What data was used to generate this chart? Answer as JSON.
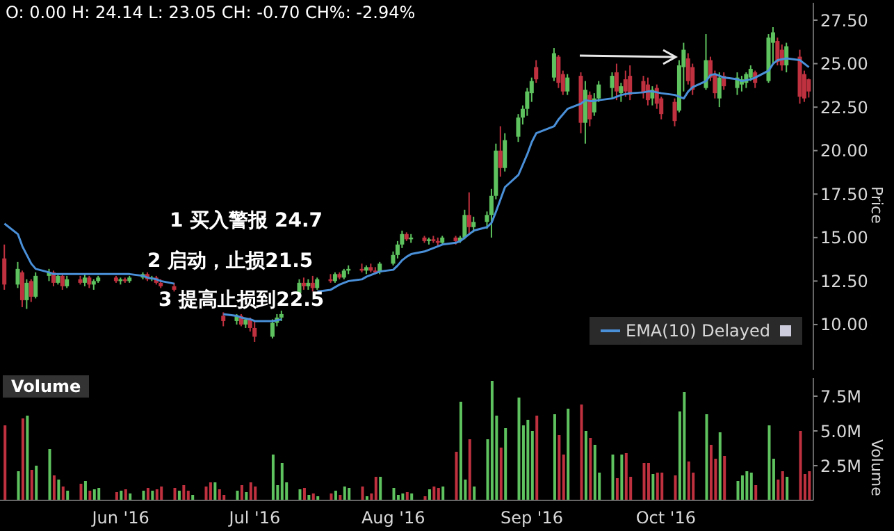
{
  "chart_data": [
    {
      "type": "candlestick",
      "title": "O: 0.00 H: 24.14 L: 23.05 CH: -0.70 CH%: -2.94%",
      "ylabel": "Price",
      "legend": "bottom right",
      "tick_labels": "y",
      "colors": [
        "#c0313f",
        "#5ec35e",
        "#c0313f",
        "#5ec35e",
        "#c0313f",
        "#5ec35e",
        "#5ec35e",
        "#c0313f",
        "#5ec35e",
        "#c0313f",
        "#5ec35e",
        "#c0313f",
        "#5ec35e",
        "#c0313f",
        "#5ec35e",
        "#5ec35e",
        "#c0313f",
        "#5ec35e",
        "#c0313f",
        "#5ec35e",
        "#5ec35e",
        "#c0313f",
        "#5ec35e",
        "#c0313f",
        "#c0313f",
        "#c0313f",
        null,
        null,
        null,
        null,
        null,
        null,
        null,
        null,
        "#c0313f",
        "#5ec35e",
        "#c0313f",
        "#5ec35e",
        "#c0313f",
        "#c0313f",
        "#5ec35e",
        "#5ec35e",
        "#5ec35e",
        null,
        "#5ec35e",
        "#c0313f",
        "#5ec35e",
        "#c0313f",
        "#5ec35e",
        "#c0313f",
        "#5ec35e",
        "#c0313f",
        "#5ec35e",
        "#5ec35e",
        "#c0313f",
        "#5ec35e",
        "#c0313f",
        "#c0313f",
        "#5ec35e",
        "#5ec35e",
        "#5ec35e",
        "#5ec35e",
        "#c0313f",
        "#5ec35e",
        "#c0313f",
        "#5ec35e",
        "#c0313f",
        "#c0313f",
        "#5ec35e",
        "#c0313f",
        "#5ec35e",
        "#5ec35e",
        "#c0313f",
        "#5ec35e",
        "#5ec35e",
        "#5ec35e",
        "#5ec35e",
        "#c0313f",
        "#5ec35e",
        "#5ec35e",
        "#5ec35e",
        "#5ec35e",
        "#5ec35e",
        "#c0313f",
        "#5ec35e",
        "#c0313f",
        "#c0313f",
        "#5ec35e",
        "#c0313f",
        "#5ec35e",
        "#c0313f",
        "#5ec35e",
        "#5ec35e",
        "#5ec35e",
        "#c0313f",
        "#5ec35e",
        "#c0313f",
        "#c0313f",
        "#c0313f",
        "#c0313f",
        "#5ec35e",
        "#c0313f",
        "#c0313f",
        "#c0313f",
        "#5ec35e",
        "#5ec35e",
        "#c0313f",
        "#c0313f",
        "#5ec35e",
        "#c0313f",
        "#c0313f",
        "#5ec35e",
        "#c0313f",
        "#5ec35e",
        "#5ec35e",
        "#5ec35e",
        "#5ec35e",
        "#c0313f",
        "#5ec35e",
        "#5ec35e",
        "#c0313f",
        "#c0313f",
        "#5ec35e",
        "#c0313f",
        "#c0313f",
        "#c0313f"
      ],
      "annotations": [
        "1 买入警报 24.7",
        "2 启动，止损21.5",
        "3 提高止损到22.5"
      ],
      "xlim": [
        "2016-05-05",
        "2016-11-03"
      ],
      "ylim": [
        7.4,
        28.5
      ],
      "yticks": [
        {
          "value": 10,
          "label": "10.00"
        },
        {
          "value": 12.5,
          "label": "12.50"
        },
        {
          "value": 15,
          "label": "15.00"
        },
        {
          "value": 17.5,
          "label": "17.50"
        },
        {
          "value": 20,
          "label": "20.00"
        },
        {
          "value": 22.5,
          "label": "22.50"
        },
        {
          "value": 25,
          "label": "25.00"
        },
        {
          "value": 27.5,
          "label": "27.50"
        }
      ],
      "x": [
        "2016-05-06",
        "2016-05-09",
        "2016-05-10",
        "2016-05-11",
        "2016-05-12",
        "2016-05-13",
        "2016-05-16",
        "2016-05-17",
        "2016-05-18",
        "2016-05-19",
        "2016-05-20",
        "2016-05-23",
        "2016-05-24",
        "2016-05-25",
        "2016-05-26",
        "2016-05-27",
        "2016-05-31",
        "2016-06-01",
        "2016-06-02",
        "2016-06-03",
        "2016-06-06",
        "2016-06-07",
        "2016-06-08",
        "2016-06-09",
        "2016-06-10",
        "2016-06-13",
        "2016-06-14",
        "2016-06-15",
        "2016-06-16",
        "2016-06-17",
        "2016-06-20",
        "2016-06-21",
        "2016-06-22",
        "2016-06-23",
        "2016-06-24",
        "2016-06-27",
        "2016-06-28",
        "2016-06-29",
        "2016-06-30",
        "2016-07-01",
        "2016-07-05",
        "2016-07-06",
        "2016-07-07",
        "2016-07-08",
        "2016-07-11",
        "2016-07-12",
        "2016-07-13",
        "2016-07-14",
        "2016-07-15",
        "2016-07-18",
        "2016-07-19",
        "2016-07-20",
        "2016-07-21",
        "2016-07-22",
        "2016-07-25",
        "2016-07-26",
        "2016-07-27",
        "2016-07-28",
        "2016-07-29",
        "2016-08-01",
        "2016-08-02",
        "2016-08-03",
        "2016-08-04",
        "2016-08-05",
        "2016-08-08",
        "2016-08-09",
        "2016-08-10",
        "2016-08-11",
        "2016-08-12",
        "2016-08-15",
        "2016-08-16",
        "2016-08-17",
        "2016-08-18",
        "2016-08-19",
        "2016-08-22",
        "2016-08-23",
        "2016-08-24",
        "2016-08-25",
        "2016-08-26",
        "2016-08-29",
        "2016-08-30",
        "2016-08-31",
        "2016-09-01",
        "2016-09-02",
        "2016-09-06",
        "2016-09-07",
        "2016-09-08",
        "2016-09-09",
        "2016-09-12",
        "2016-09-13",
        "2016-09-14",
        "2016-09-15",
        "2016-09-16",
        "2016-09-19",
        "2016-09-20",
        "2016-09-21",
        "2016-09-22",
        "2016-09-23",
        "2016-09-26",
        "2016-09-27",
        "2016-09-28",
        "2016-09-29",
        "2016-09-30",
        "2016-10-03",
        "2016-10-04",
        "2016-10-05",
        "2016-10-06",
        "2016-10-07",
        "2016-10-10",
        "2016-10-11",
        "2016-10-12",
        "2016-10-13",
        "2016-10-14",
        "2016-10-17",
        "2016-10-18",
        "2016-10-19",
        "2016-10-20",
        "2016-10-21",
        "2016-10-24",
        "2016-10-25",
        "2016-10-26",
        "2016-10-27",
        "2016-10-28",
        "2016-10-31",
        "2016-11-01",
        "2016-11-02"
      ],
      "ohlc": [
        [
          13.8,
          14.6,
          12.0,
          12.3
        ],
        [
          12.3,
          13.6,
          12.1,
          13.2
        ],
        [
          13.0,
          13.1,
          11.0,
          11.4
        ],
        [
          11.4,
          12.6,
          10.9,
          12.4
        ],
        [
          12.5,
          12.6,
          11.3,
          11.6
        ],
        [
          11.6,
          13.0,
          11.5,
          12.8
        ],
        [
          12.8,
          13.2,
          12.5,
          13.0
        ],
        [
          13.0,
          13.1,
          12.2,
          12.4
        ],
        [
          12.4,
          12.9,
          12.3,
          12.8
        ],
        [
          12.8,
          12.9,
          12.0,
          12.2
        ],
        [
          12.2,
          12.8,
          12.1,
          12.6
        ],
        [
          12.6,
          12.8,
          12.3,
          12.4
        ],
        [
          12.4,
          12.9,
          12.2,
          12.7
        ],
        [
          12.7,
          12.8,
          12.1,
          12.3
        ],
        [
          12.3,
          12.6,
          12.0,
          12.5
        ],
        [
          12.5,
          12.8,
          12.4,
          12.7
        ],
        [
          12.7,
          12.8,
          12.4,
          12.5
        ],
        [
          12.5,
          12.7,
          12.3,
          12.6
        ],
        [
          12.6,
          12.7,
          12.4,
          12.5
        ],
        [
          12.5,
          12.8,
          12.4,
          12.7
        ],
        [
          12.7,
          13.0,
          12.6,
          12.9
        ],
        [
          12.9,
          13.0,
          12.5,
          12.6
        ],
        [
          12.6,
          12.8,
          12.5,
          12.7
        ],
        [
          12.7,
          12.8,
          12.3,
          12.4
        ],
        [
          12.4,
          12.6,
          12.1,
          12.2
        ],
        [
          12.2,
          12.4,
          11.9,
          12.0
        ],
        null,
        null,
        null,
        null,
        null,
        null,
        null,
        null,
        [
          10.5,
          10.7,
          9.9,
          10.2
        ],
        [
          10.2,
          10.6,
          10.0,
          10.5
        ],
        [
          10.5,
          10.6,
          9.9,
          10.0
        ],
        [
          10.0,
          10.4,
          9.8,
          10.3
        ],
        [
          10.3,
          10.4,
          9.6,
          9.8
        ],
        [
          9.8,
          10.2,
          9.0,
          9.3
        ],
        [
          9.3,
          10.3,
          9.2,
          10.1
        ],
        [
          10.1,
          10.6,
          9.9,
          10.4
        ],
        [
          10.4,
          10.8,
          10.2,
          10.6
        ],
        null,
        [
          11.8,
          12.6,
          11.6,
          12.4
        ],
        [
          12.4,
          12.7,
          12.0,
          12.2
        ],
        [
          12.2,
          12.6,
          12.0,
          12.4
        ],
        [
          12.4,
          12.8,
          11.9,
          12.1
        ],
        [
          12.1,
          12.7,
          12.0,
          12.6
        ],
        [
          12.6,
          12.9,
          12.4,
          12.5
        ],
        [
          12.5,
          13.0,
          12.4,
          12.9
        ],
        [
          12.9,
          13.0,
          12.6,
          12.7
        ],
        [
          12.7,
          13.2,
          12.6,
          13.1
        ],
        [
          13.1,
          13.4,
          12.9,
          13.2
        ],
        [
          13.2,
          13.5,
          13.0,
          13.1
        ],
        [
          13.1,
          13.4,
          12.9,
          13.3
        ],
        [
          13.3,
          13.5,
          13.0,
          13.1
        ],
        [
          13.1,
          13.3,
          12.9,
          13.0
        ],
        [
          13.0,
          13.6,
          12.9,
          13.5
        ],
        [
          13.5,
          14.2,
          13.4,
          14.0
        ],
        [
          14.0,
          14.8,
          13.8,
          14.6
        ],
        [
          14.6,
          15.4,
          14.4,
          15.2
        ],
        [
          15.2,
          15.3,
          14.8,
          14.9
        ],
        [
          14.9,
          15.2,
          14.7,
          15.0
        ],
        [
          15.0,
          15.1,
          14.7,
          14.8
        ],
        [
          14.8,
          15.0,
          14.6,
          14.9
        ],
        [
          14.9,
          15.1,
          14.7,
          14.8
        ],
        [
          14.8,
          15.0,
          14.5,
          14.7
        ],
        [
          14.7,
          15.1,
          14.6,
          15.0
        ],
        [
          15.0,
          15.1,
          14.6,
          14.8
        ],
        [
          14.8,
          15.1,
          14.7,
          15.0
        ],
        [
          15.0,
          16.6,
          14.9,
          16.3
        ],
        [
          16.3,
          17.6,
          15.2,
          15.6
        ],
        [
          15.6,
          16.2,
          15.3,
          15.9
        ],
        [
          15.9,
          16.5,
          15.5,
          16.3
        ],
        [
          16.3,
          17.8,
          15.0,
          17.4
        ],
        [
          17.4,
          20.4,
          17.2,
          20.0
        ],
        [
          20.0,
          21.4,
          18.5,
          19.0
        ],
        [
          19.0,
          21.0,
          18.8,
          20.6
        ],
        [
          20.8,
          22.1,
          20.5,
          21.9
        ],
        [
          21.9,
          22.6,
          21.5,
          22.4
        ],
        [
          22.4,
          23.6,
          22.0,
          23.4
        ],
        [
          23.3,
          24.2,
          22.8,
          24.0
        ],
        [
          24.8,
          25.2,
          23.9,
          24.1
        ],
        [
          24.2,
          25.9,
          24.0,
          25.6
        ],
        [
          25.4,
          25.5,
          23.6,
          23.9
        ],
        [
          24.4,
          24.6,
          23.2,
          23.4
        ],
        [
          23.4,
          24.4,
          23.2,
          24.2
        ],
        [
          24.3,
          24.5,
          21.0,
          21.6
        ],
        [
          21.6,
          24.0,
          20.4,
          23.5
        ],
        [
          23.2,
          23.4,
          21.4,
          21.8
        ],
        [
          22.2,
          23.3,
          22.0,
          23.0
        ],
        [
          23.0,
          24.0,
          22.8,
          23.8
        ],
        [
          23.6,
          24.5,
          23.0,
          24.3
        ],
        [
          24.5,
          25.0,
          22.9,
          23.4
        ],
        [
          23.3,
          23.9,
          22.8,
          23.7
        ],
        [
          24.1,
          24.6,
          23.1,
          23.4
        ],
        [
          24.3,
          24.9,
          22.9,
          23.2
        ],
        [
          24.0,
          24.3,
          23.0,
          23.3
        ],
        [
          23.8,
          24.2,
          22.6,
          22.9
        ],
        [
          23.0,
          23.7,
          22.6,
          23.5
        ],
        [
          23.6,
          23.8,
          22.4,
          22.7
        ],
        [
          23.0,
          23.1,
          21.8,
          22.1
        ],
        [
          22.8,
          23.0,
          21.4,
          21.7
        ],
        [
          22.3,
          25.2,
          22.2,
          24.9
        ],
        [
          24.8,
          26.2,
          23.4,
          25.8
        ],
        [
          25.3,
          25.6,
          23.8,
          24.0
        ],
        [
          24.8,
          25.0,
          23.2,
          23.5
        ],
        [
          23.6,
          26.7,
          23.5,
          25.2
        ],
        [
          25.2,
          25.4,
          24.0,
          24.2
        ],
        [
          24.4,
          24.6,
          23.0,
          23.3
        ],
        [
          23.0,
          24.5,
          22.5,
          24.2
        ],
        [
          24.3,
          24.5,
          23.5,
          23.7
        ],
        [
          23.6,
          24.5,
          23.2,
          24.2
        ],
        [
          23.8,
          24.3,
          23.4,
          24.1
        ],
        [
          23.9,
          24.5,
          23.6,
          24.4
        ],
        [
          24.2,
          24.9,
          24.0,
          24.7
        ],
        [
          24.5,
          24.6,
          23.6,
          23.9
        ],
        [
          24.0,
          26.7,
          23.9,
          26.5
        ],
        [
          26.2,
          27.1,
          25.0,
          26.8
        ],
        [
          26.3,
          26.5,
          24.9,
          25.1
        ],
        [
          25.8,
          26.1,
          24.6,
          24.9
        ],
        [
          24.9,
          26.2,
          24.5,
          26.0
        ],
        [
          25.4,
          25.8,
          22.7,
          23.1
        ],
        [
          24.4,
          24.6,
          22.8,
          23.0
        ],
        [
          24.1,
          24.14,
          23.05,
          23.4
        ]
      ],
      "series": [
        {
          "name": "EMA(10) Delayed",
          "type": "line",
          "color": "#4a90d9",
          "values": [
            15.8,
            15.2,
            14.5,
            14.0,
            13.5,
            13.2,
            13.0,
            12.9,
            12.9,
            12.9,
            12.9,
            12.9,
            12.9,
            12.9,
            12.9,
            12.9,
            12.9,
            12.9,
            12.9,
            12.9,
            12.8,
            12.7,
            12.65,
            12.6,
            12.5,
            12.35,
            null,
            null,
            null,
            null,
            null,
            null,
            null,
            null,
            10.6,
            10.5,
            10.4,
            10.35,
            10.3,
            10.2,
            10.2,
            10.25,
            10.3,
            null,
            null,
            null,
            null,
            null,
            11.9,
            12.0,
            12.15,
            12.3,
            12.4,
            12.5,
            12.6,
            12.75,
            12.85,
            12.95,
            13.05,
            13.15,
            13.4,
            13.7,
            13.9,
            14.05,
            14.2,
            14.3,
            14.4,
            14.5,
            14.6,
            14.7,
            14.8,
            15.0,
            15.2,
            15.4,
            15.6,
            15.85,
            16.5,
            17.2,
            17.9,
            18.6,
            19.2,
            19.8,
            20.5,
            21.0,
            21.4,
            21.8,
            22.1,
            22.4,
            22.7,
            22.9,
            22.85,
            22.85,
            22.9,
            23.0,
            23.1,
            23.2,
            23.25,
            23.3,
            23.35,
            23.4,
            23.4,
            23.35,
            23.3,
            23.2,
            23.1,
            23.0,
            23.4,
            23.65,
            24.0,
            24.35,
            24.4,
            24.3,
            24.2,
            24.1,
            24.0,
            24.05,
            24.1,
            24.2,
            24.6,
            25.0,
            25.2,
            25.25,
            25.3,
            25.2,
            25.0,
            24.8
          ]
        }
      ]
    },
    {
      "type": "bar",
      "title": "Volume",
      "ylabel": "Volume",
      "xlim": [
        "2016-05-05",
        "2016-11-03"
      ],
      "ylim": [
        0,
        8.8
      ],
      "xticks": [
        {
          "value": "2016-06-01",
          "label": "Jun '16"
        },
        {
          "value": "2016-07-01",
          "label": "Jul '16"
        },
        {
          "value": "2016-08-01",
          "label": "Aug '16"
        },
        {
          "value": "2016-09-01",
          "label": "Sep '16"
        },
        {
          "value": "2016-10-01",
          "label": "Oct '16"
        }
      ],
      "yticks": [
        {
          "value": 2.5,
          "label": "2.5M"
        },
        {
          "value": 5,
          "label": "5.0M"
        },
        {
          "value": 7.5,
          "label": "7.5M"
        }
      ],
      "x": [
        "2016-05-06",
        "2016-05-09",
        "2016-05-10",
        "2016-05-11",
        "2016-05-12",
        "2016-05-13",
        "2016-05-16",
        "2016-05-17",
        "2016-05-18",
        "2016-05-19",
        "2016-05-20",
        "2016-05-23",
        "2016-05-24",
        "2016-05-25",
        "2016-05-26",
        "2016-05-27",
        "2016-05-31",
        "2016-06-01",
        "2016-06-02",
        "2016-06-03",
        "2016-06-06",
        "2016-06-07",
        "2016-06-08",
        "2016-06-09",
        "2016-06-10",
        "2016-06-13",
        "2016-06-14",
        "2016-06-15",
        "2016-06-16",
        "2016-06-17",
        "2016-06-20",
        "2016-06-21",
        "2016-06-22",
        "2016-06-23",
        "2016-06-24",
        "2016-06-27",
        "2016-06-28",
        "2016-06-29",
        "2016-06-30",
        "2016-07-01",
        "2016-07-05",
        "2016-07-06",
        "2016-07-07",
        "2016-07-08",
        "2016-07-11",
        "2016-07-12",
        "2016-07-13",
        "2016-07-14",
        "2016-07-15",
        "2016-07-18",
        "2016-07-19",
        "2016-07-20",
        "2016-07-21",
        "2016-07-22",
        "2016-07-25",
        "2016-07-26",
        "2016-07-27",
        "2016-07-28",
        "2016-07-29",
        "2016-08-01",
        "2016-08-02",
        "2016-08-03",
        "2016-08-04",
        "2016-08-05",
        "2016-08-08",
        "2016-08-09",
        "2016-08-10",
        "2016-08-11",
        "2016-08-12",
        "2016-08-15",
        "2016-08-16",
        "2016-08-17",
        "2016-08-18",
        "2016-08-19",
        "2016-08-22",
        "2016-08-23",
        "2016-08-24",
        "2016-08-25",
        "2016-08-26",
        "2016-08-29",
        "2016-08-30",
        "2016-08-31",
        "2016-09-01",
        "2016-09-02",
        "2016-09-06",
        "2016-09-07",
        "2016-09-08",
        "2016-09-09",
        "2016-09-12",
        "2016-09-13",
        "2016-09-14",
        "2016-09-15",
        "2016-09-16",
        "2016-09-19",
        "2016-09-20",
        "2016-09-21",
        "2016-09-22",
        "2016-09-23",
        "2016-09-26",
        "2016-09-27",
        "2016-09-28",
        "2016-09-29",
        "2016-09-30",
        "2016-10-03",
        "2016-10-04",
        "2016-10-05",
        "2016-10-06",
        "2016-10-07",
        "2016-10-10",
        "2016-10-11",
        "2016-10-12",
        "2016-10-13",
        "2016-10-14",
        "2016-10-17",
        "2016-10-18",
        "2016-10-19",
        "2016-10-20",
        "2016-10-21",
        "2016-10-24",
        "2016-10-25",
        "2016-10-26",
        "2016-10-27",
        "2016-10-28",
        "2016-10-31",
        "2016-11-01",
        "2016-11-02"
      ],
      "values": [
        5.4,
        2.1,
        5.9,
        6.1,
        2.2,
        2.5,
        3.7,
        1.8,
        1.5,
        1.0,
        0.7,
        1.2,
        1.4,
        0.7,
        0.8,
        0.9,
        0.6,
        0.7,
        0.8,
        0.5,
        0.7,
        0.9,
        0.7,
        0.8,
        1.0,
        0.9,
        0.7,
        1.1,
        0.7,
        0.4,
        1.0,
        1.3,
        1.3,
        0.8,
        0.4,
        0.7,
        1.1,
        0.6,
        1.3,
        1.0,
        3.3,
        1.1,
        2.7,
        1.3,
        0.8,
        0.9,
        0.4,
        0.5,
        0.3,
        0.5,
        0.7,
        0.4,
        1.0,
        0.9,
        1.0,
        0.3,
        0.5,
        1.7,
        1.7,
        0.9,
        0.4,
        0.5,
        0.6,
        0.5,
        0.3,
        0.8,
        1.0,
        0.9,
        1.0,
        3.5,
        7.1,
        1.5,
        4.4,
        1.0,
        4.4,
        8.6,
        6.1,
        3.8,
        5.2,
        7.4,
        5.4,
        5.8,
        5.0,
        6.1,
        6.2,
        4.7,
        3.3,
        6.6,
        6.9,
        5.0,
        4.5,
        4.0,
        2.0,
        3.3,
        1.6,
        3.3,
        3.4,
        1.7,
        2.7,
        2.7,
        1.9,
        2.0,
        2.0,
        1.8,
        6.4,
        7.8,
        2.8,
        2.0,
        6.2,
        4.0,
        3.0,
        4.9,
        3.2,
        1.4,
        1.8,
        2.1,
        2.0,
        1.1,
        5.4,
        3.0,
        1.5,
        2.1,
        1.7,
        5.0,
        1.9,
        2.1
      ],
      "colors": [
        "#c0313f",
        "#5ec35e",
        "#c0313f",
        "#5ec35e",
        "#c0313f",
        "#5ec35e",
        "#5ec35e",
        "#c0313f",
        "#5ec35e",
        "#c0313f",
        "#5ec35e",
        "#c0313f",
        "#5ec35e",
        "#c0313f",
        "#5ec35e",
        "#5ec35e",
        "#c0313f",
        "#5ec35e",
        "#c0313f",
        "#5ec35e",
        "#5ec35e",
        "#c0313f",
        "#5ec35e",
        "#c0313f",
        "#c0313f",
        "#c0313f",
        "#5ec35e",
        "#c0313f",
        "#c0313f",
        "#5ec35e",
        "#c0313f",
        "#c0313f",
        "#5ec35e",
        "#c0313f",
        "#c0313f",
        "#5ec35e",
        "#c0313f",
        "#5ec35e",
        "#c0313f",
        "#c0313f",
        "#5ec35e",
        "#5ec35e",
        "#5ec35e",
        "#5ec35e",
        "#5ec35e",
        "#c0313f",
        "#5ec35e",
        "#c0313f",
        "#5ec35e",
        "#c0313f",
        "#5ec35e",
        "#c0313f",
        "#5ec35e",
        "#5ec35e",
        "#c0313f",
        "#5ec35e",
        "#c0313f",
        "#c0313f",
        "#5ec35e",
        "#5ec35e",
        "#5ec35e",
        "#5ec35e",
        "#c0313f",
        "#5ec35e",
        "#c0313f",
        "#5ec35e",
        "#c0313f",
        "#c0313f",
        "#5ec35e",
        "#c0313f",
        "#5ec35e",
        "#5ec35e",
        "#c0313f",
        "#5ec35e",
        "#5ec35e",
        "#5ec35e",
        "#5ec35e",
        "#c0313f",
        "#5ec35e",
        "#5ec35e",
        "#5ec35e",
        "#5ec35e",
        "#5ec35e",
        "#c0313f",
        "#5ec35e",
        "#c0313f",
        "#c0313f",
        "#5ec35e",
        "#c0313f",
        "#5ec35e",
        "#c0313f",
        "#5ec35e",
        "#5ec35e",
        "#5ec35e",
        "#c0313f",
        "#5ec35e",
        "#c0313f",
        "#c0313f",
        "#c0313f",
        "#c0313f",
        "#5ec35e",
        "#c0313f",
        "#c0313f",
        "#c0313f",
        "#5ec35e",
        "#5ec35e",
        "#c0313f",
        "#c0313f",
        "#5ec35e",
        "#c0313f",
        "#c0313f",
        "#5ec35e",
        "#c0313f",
        "#5ec35e",
        "#5ec35e",
        "#5ec35e",
        "#5ec35e",
        "#c0313f",
        "#5ec35e",
        "#5ec35e",
        "#c0313f",
        "#c0313f",
        "#5ec35e",
        "#c0313f",
        "#c0313f",
        "#c0313f"
      ]
    }
  ]
}
